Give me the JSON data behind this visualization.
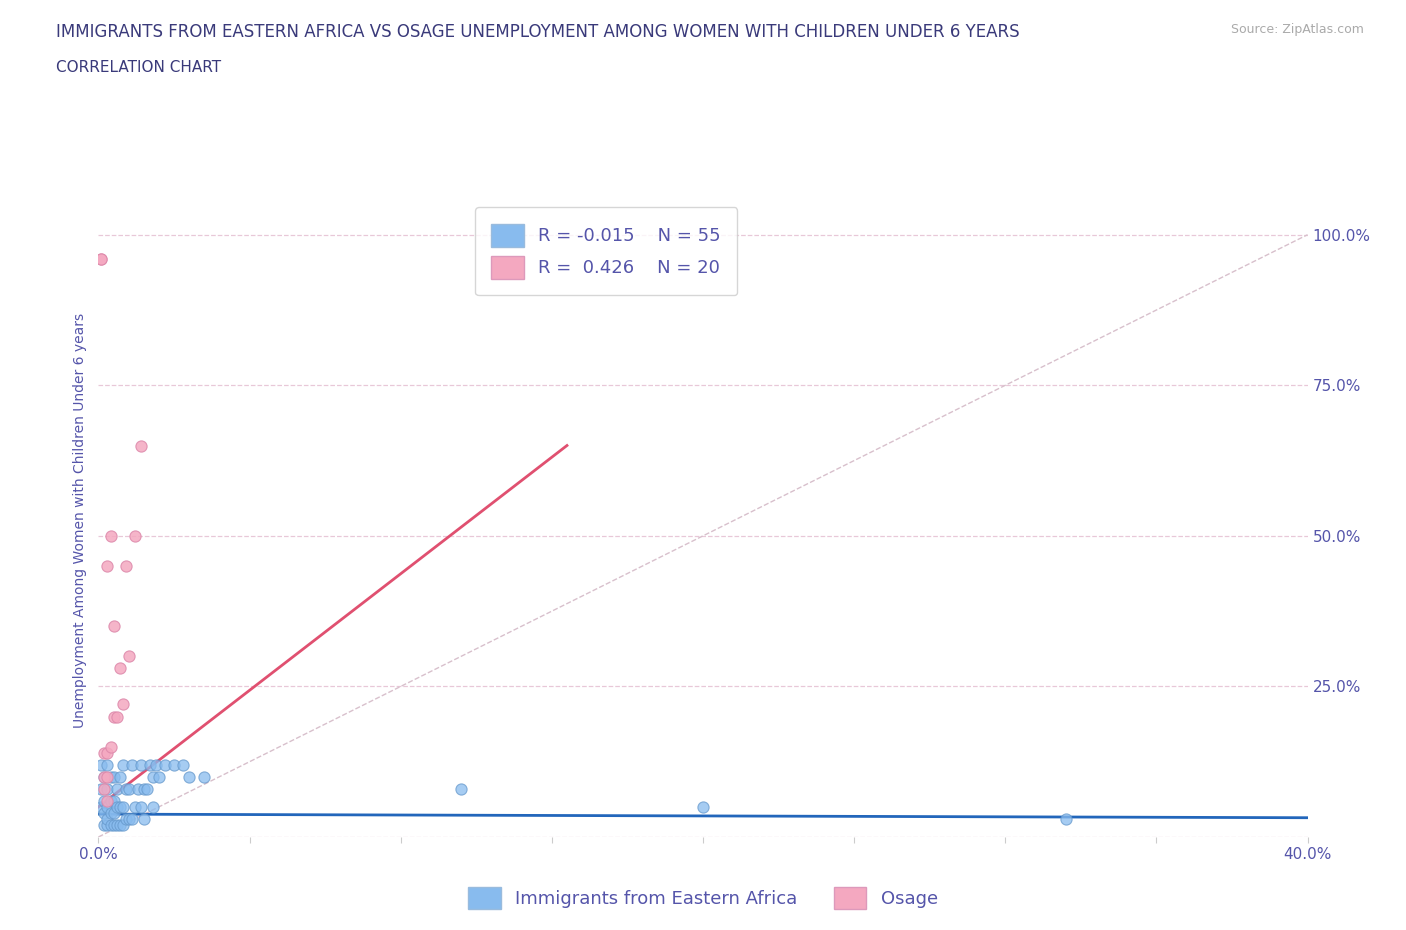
{
  "title": "IMMIGRANTS FROM EASTERN AFRICA VS OSAGE UNEMPLOYMENT AMONG WOMEN WITH CHILDREN UNDER 6 YEARS",
  "subtitle": "CORRELATION CHART",
  "source": "Source: ZipAtlas.com",
  "ylabel": "Unemployment Among Women with Children Under 6 years",
  "xlim": [
    0.0,
    0.4
  ],
  "ylim": [
    0.0,
    1.05
  ],
  "yticks_right": [
    0.0,
    0.25,
    0.5,
    0.75,
    1.0
  ],
  "yticklabels_right": [
    "",
    "25.0%",
    "50.0%",
    "75.0%",
    "100.0%"
  ],
  "title_color": "#3a3a7a",
  "subtitle_color": "#3a3a7a",
  "axis_label_color": "#5555aa",
  "tick_color": "#5555aa",
  "grid_color": "#e8c8d8",
  "background_color": "#ffffff",
  "blue_color": "#88bbee",
  "pink_color": "#f4a8c0",
  "blue_scatter": {
    "x": [
      0.001,
      0.001,
      0.001,
      0.002,
      0.002,
      0.002,
      0.002,
      0.003,
      0.003,
      0.003,
      0.003,
      0.003,
      0.004,
      0.004,
      0.004,
      0.004,
      0.005,
      0.005,
      0.005,
      0.005,
      0.006,
      0.006,
      0.006,
      0.007,
      0.007,
      0.007,
      0.008,
      0.008,
      0.008,
      0.009,
      0.009,
      0.01,
      0.01,
      0.011,
      0.011,
      0.012,
      0.013,
      0.014,
      0.014,
      0.015,
      0.015,
      0.016,
      0.017,
      0.018,
      0.018,
      0.019,
      0.02,
      0.022,
      0.025,
      0.028,
      0.03,
      0.035,
      0.12,
      0.2,
      0.32
    ],
    "y": [
      0.05,
      0.08,
      0.12,
      0.02,
      0.04,
      0.06,
      0.1,
      0.02,
      0.03,
      0.05,
      0.08,
      0.12,
      0.02,
      0.04,
      0.06,
      0.1,
      0.02,
      0.04,
      0.06,
      0.1,
      0.02,
      0.05,
      0.08,
      0.02,
      0.05,
      0.1,
      0.02,
      0.05,
      0.12,
      0.03,
      0.08,
      0.03,
      0.08,
      0.03,
      0.12,
      0.05,
      0.08,
      0.05,
      0.12,
      0.03,
      0.08,
      0.08,
      0.12,
      0.05,
      0.1,
      0.12,
      0.1,
      0.12,
      0.12,
      0.12,
      0.1,
      0.1,
      0.08,
      0.05,
      0.03
    ]
  },
  "pink_scatter": {
    "x": [
      0.001,
      0.001,
      0.002,
      0.002,
      0.002,
      0.003,
      0.003,
      0.003,
      0.004,
      0.005,
      0.005,
      0.006,
      0.007,
      0.008,
      0.009,
      0.01,
      0.012,
      0.014,
      0.003,
      0.004
    ],
    "y": [
      0.96,
      0.96,
      0.08,
      0.1,
      0.14,
      0.06,
      0.1,
      0.14,
      0.15,
      0.2,
      0.35,
      0.2,
      0.28,
      0.22,
      0.45,
      0.3,
      0.5,
      0.65,
      0.45,
      0.5
    ]
  },
  "blue_line": {
    "x0": 0.0,
    "x1": 0.4,
    "y0": 0.038,
    "y1": 0.032
  },
  "pink_line": {
    "x0": 0.0,
    "x1": 0.155,
    "y0": 0.05,
    "y1": 0.65
  },
  "diag_line": {
    "x0": 0.0,
    "x1": 0.4,
    "y0": 0.0,
    "y1": 1.0
  },
  "legend_blue_R": "-0.015",
  "legend_blue_N": "55",
  "legend_pink_R": "0.426",
  "legend_pink_N": "20",
  "label1": "Immigrants from Eastern Africa",
  "label2": "Osage",
  "title_fontsize": 12,
  "subtitle_fontsize": 11,
  "axis_fontsize": 10,
  "tick_fontsize": 11,
  "legend_fontsize": 13
}
